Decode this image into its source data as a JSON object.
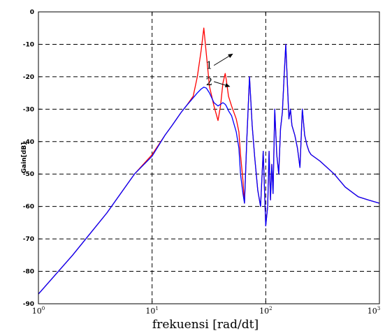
{
  "chart_data": {
    "type": "line",
    "xlabel": "frekuensi [rad/dt]",
    "ylabel": "Gain[dB]",
    "x_scale": "log",
    "xlim": [
      1,
      1000
    ],
    "ylim": [
      -90,
      0
    ],
    "grid": true,
    "grid_style": "dashed",
    "y_ticks": [
      "0",
      "-10",
      "-20",
      "-30",
      "-40",
      "-50",
      "-60",
      "-70",
      "-80",
      "-90"
    ],
    "x_ticks": [
      {
        "base": "10",
        "exp": "0"
      },
      {
        "base": "10",
        "exp": "1"
      },
      {
        "base": "10",
        "exp": "2"
      },
      {
        "base": "10",
        "exp": "3"
      }
    ],
    "annotations": [
      {
        "text": "1",
        "x": 35,
        "y": -16.5
      },
      {
        "text": "2",
        "x": 35,
        "y": -21.5
      }
    ],
    "series": [
      {
        "color": "#ff0000",
        "x": [
          1,
          2,
          4,
          7,
          10,
          13,
          15,
          18,
          20,
          23,
          25,
          27,
          28.5,
          30,
          32,
          35,
          38,
          40,
          42,
          44,
          45,
          47,
          50,
          55,
          58,
          60,
          63,
          65,
          68,
          72,
          76,
          80,
          85,
          90,
          95,
          100,
          104,
          107,
          110,
          113,
          116,
          120,
          125,
          130,
          135,
          140,
          145,
          150,
          155,
          160,
          165,
          170,
          180,
          190,
          200,
          210,
          220,
          230,
          240,
          250,
          300,
          400,
          500,
          650,
          800,
          1000
        ],
        "y": [
          -87,
          -75,
          -62,
          -50,
          -44,
          -38,
          -35,
          -31,
          -29,
          -26,
          -20,
          -12,
          -5,
          -13,
          -23,
          -29,
          -33.5,
          -29,
          -22,
          -19,
          -21,
          -26,
          -29,
          -33,
          -37,
          -44,
          -52,
          -59,
          -40,
          -20,
          -35,
          -45,
          -55,
          -60,
          -43,
          -66,
          -60,
          -43,
          -58,
          -47,
          -56,
          -30,
          -44,
          -50,
          -36,
          -31,
          -20,
          -10,
          -22,
          -33,
          -30,
          -35,
          -38,
          -42,
          -48,
          -30,
          -38,
          -41,
          -43,
          -44,
          -46,
          -50,
          -54,
          -57,
          -58,
          -59
        ]
      },
      {
        "color": "#0000ff",
        "x": [
          1,
          2,
          4,
          7,
          10,
          13,
          15,
          18,
          20,
          23,
          25,
          27,
          28.5,
          30,
          32,
          35,
          38,
          40,
          42,
          44,
          45,
          47,
          50,
          55,
          58,
          60,
          63,
          65,
          68,
          72,
          76,
          80,
          85,
          90,
          95,
          100,
          104,
          107,
          110,
          113,
          116,
          120,
          125,
          130,
          135,
          140,
          145,
          150,
          155,
          160,
          165,
          170,
          180,
          190,
          200,
          210,
          220,
          230,
          240,
          250,
          300,
          400,
          500,
          650,
          800,
          1000
        ],
        "y": [
          -87,
          -75,
          -62,
          -50,
          -44.5,
          -38,
          -35,
          -31,
          -29,
          -26.5,
          -25,
          -23.8,
          -23.2,
          -23.5,
          -25,
          -28,
          -29,
          -28.5,
          -28,
          -28.5,
          -29,
          -30.5,
          -32,
          -37,
          -42,
          -50,
          -56,
          -59,
          -40,
          -20,
          -35,
          -45,
          -55,
          -60,
          -43,
          -66,
          -60,
          -43,
          -58,
          -47,
          -56,
          -30,
          -44,
          -50,
          -36,
          -31,
          -20,
          -10,
          -22,
          -33,
          -30,
          -35,
          -38,
          -42,
          -48,
          -30,
          -38,
          -41,
          -43,
          -44,
          -46,
          -50,
          -54,
          -57,
          -58,
          -59
        ]
      }
    ]
  }
}
